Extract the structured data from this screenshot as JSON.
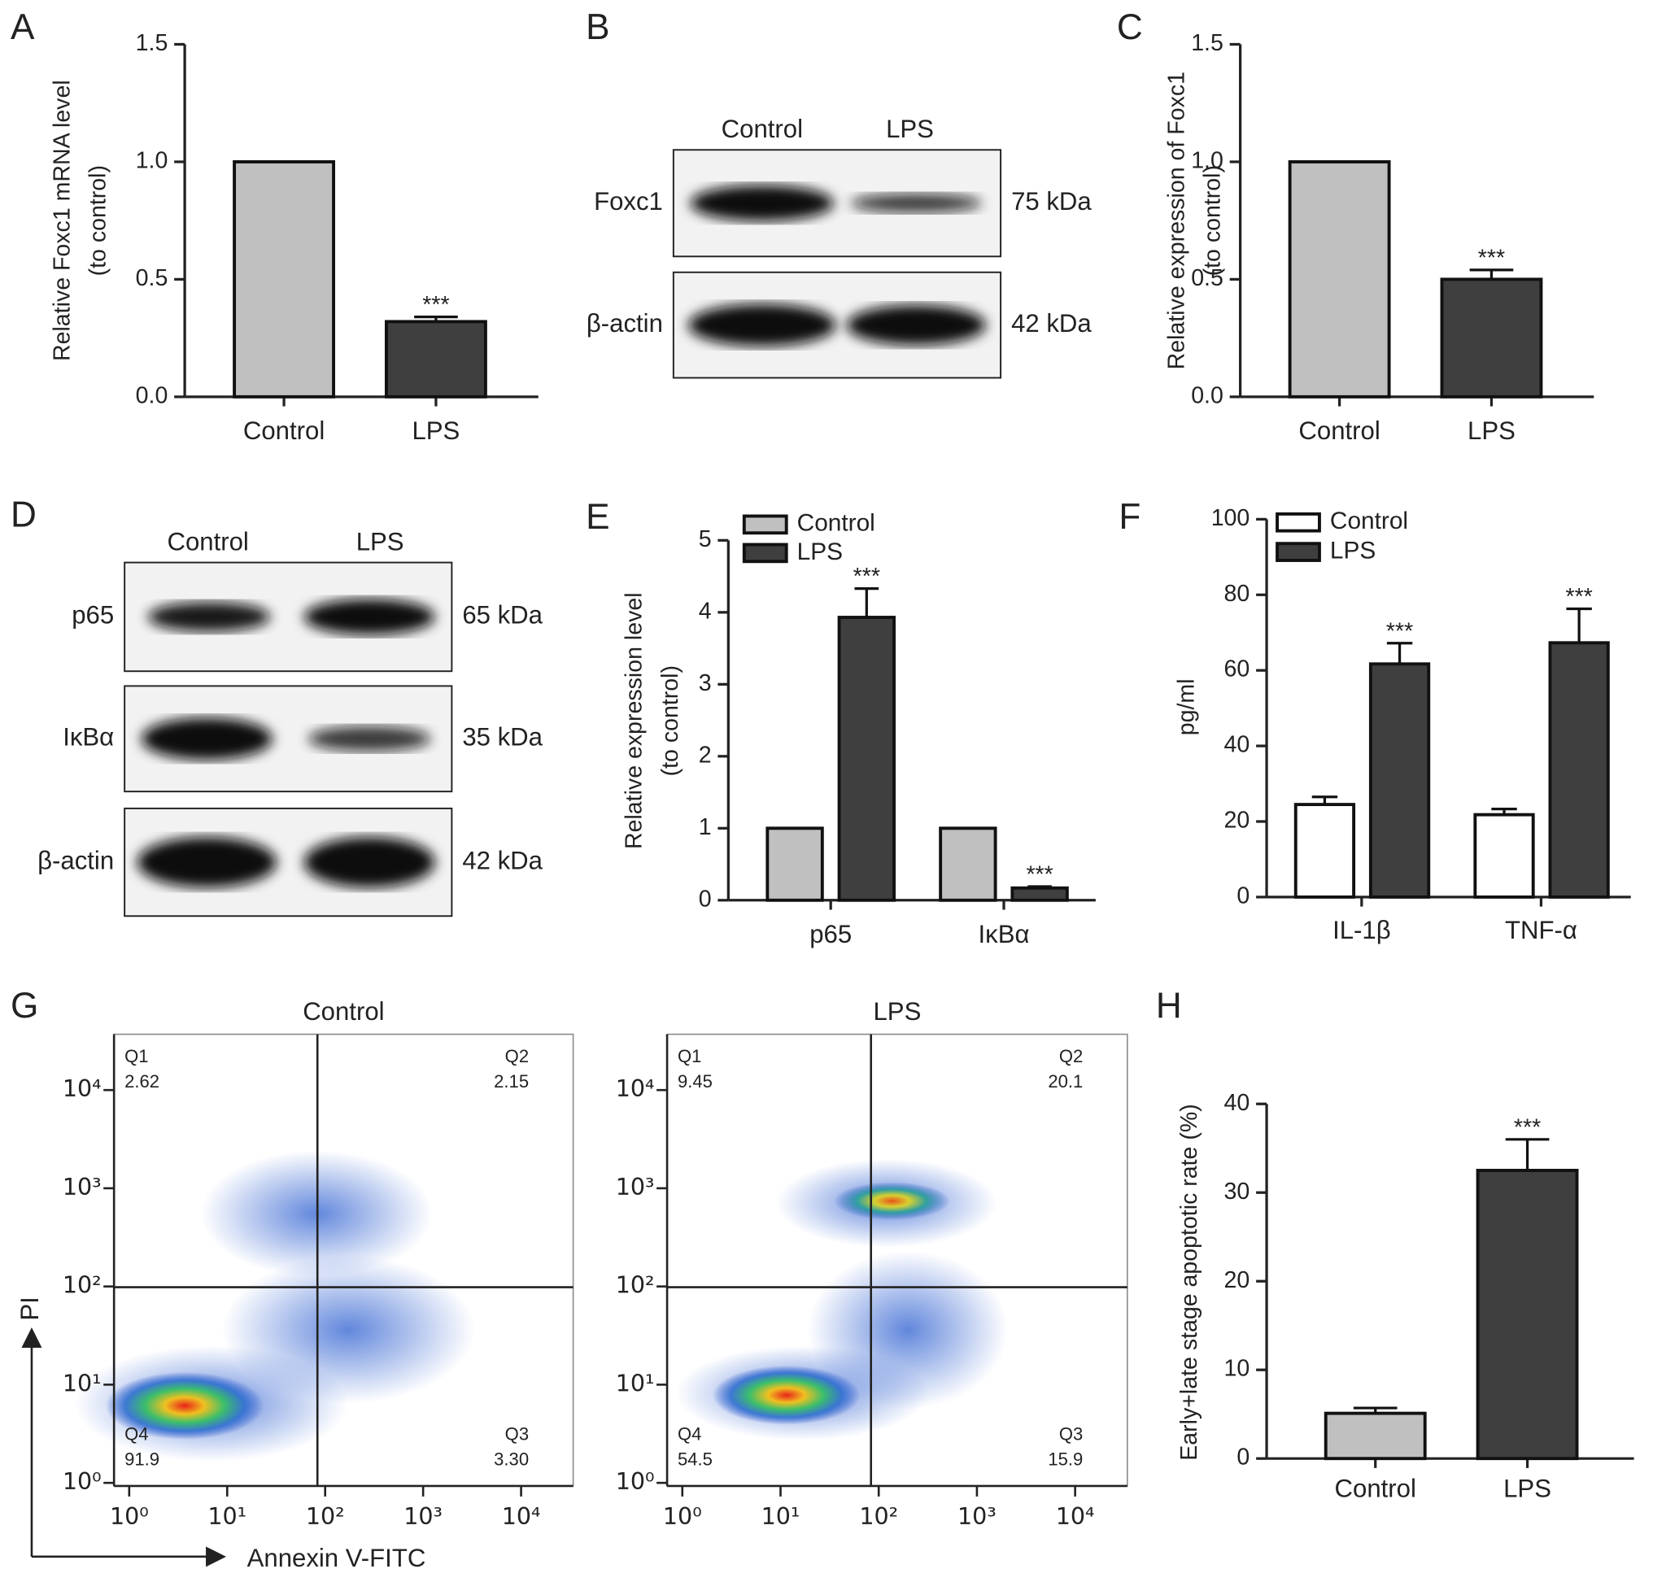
{
  "chart_data": [
    {
      "type": "bar",
      "panel": "A",
      "ylabel": [
        "Relative Foxc1 mRNA level",
        "(to control)"
      ],
      "categories": [
        "Control",
        "LPS"
      ],
      "values": [
        1.0,
        0.32
      ],
      "errors": [
        0,
        0.02
      ],
      "significance": [
        null,
        "***"
      ],
      "colors": [
        "#c0c0c0",
        "#3f3f3f"
      ],
      "ylim": [
        0,
        1.5
      ],
      "yticks": [
        {
          "value": 0,
          "label": "0.0"
        },
        {
          "value": 0.5,
          "label": "0.5"
        },
        {
          "value": 1,
          "label": "1.0"
        },
        {
          "value": 1.5,
          "label": "1.5"
        }
      ]
    },
    {
      "type": "western_blot",
      "panel": "B",
      "lanes": [
        "Control",
        "LPS"
      ],
      "rows": [
        {
          "name": "Foxc1",
          "size": "75 kDa"
        },
        {
          "name": "β-actin",
          "size": "42 kDa"
        }
      ]
    },
    {
      "type": "bar",
      "panel": "C",
      "ylabel": [
        "Relative expression of Foxc1",
        "(to control)"
      ],
      "categories": [
        "Control",
        "LPS"
      ],
      "values": [
        1.0,
        0.5
      ],
      "errors": [
        0,
        0.04
      ],
      "significance": [
        null,
        "***"
      ],
      "colors": [
        "#c0c0c0",
        "#3f3f3f"
      ],
      "ylim": [
        0,
        1.5
      ],
      "yticks": [
        {
          "value": 0,
          "label": "0.0"
        },
        {
          "value": 0.5,
          "label": "0.5"
        },
        {
          "value": 1,
          "label": "1.0"
        },
        {
          "value": 1.5,
          "label": "1.5"
        }
      ]
    },
    {
      "type": "western_blot",
      "panel": "D",
      "lanes": [
        "Control",
        "LPS"
      ],
      "rows": [
        {
          "name": "p65",
          "size": "65 kDa"
        },
        {
          "name": "IκBα",
          "size": "35 kDa"
        },
        {
          "name": "β-actin",
          "size": "42 kDa"
        }
      ]
    },
    {
      "type": "bar",
      "panel": "E",
      "ylabel": [
        "Relative expression level",
        "(to control)"
      ],
      "categories": [
        "p65",
        "IκBα"
      ],
      "series": [
        {
          "name": "Control",
          "color": "#c0c0c0",
          "values": [
            1,
            1
          ],
          "errors": [
            0,
            0
          ],
          "significance": [
            null,
            null
          ]
        },
        {
          "name": "LPS",
          "color": "#3f3f3f",
          "values": [
            3.93,
            0.17
          ],
          "errors": [
            0.4,
            0.02
          ],
          "significance": [
            "***",
            "***"
          ]
        }
      ],
      "ylim": [
        0,
        5
      ],
      "yticks": [
        0,
        1,
        2,
        3,
        4,
        5
      ],
      "legend": "top-left"
    },
    {
      "type": "bar",
      "panel": "F",
      "ylabel": [
        "pg/ml"
      ],
      "categories": [
        "IL-1β",
        "TNF-α"
      ],
      "series": [
        {
          "name": "Control",
          "color": "#ffffff",
          "values": [
            24.5,
            21.8
          ],
          "errors": [
            2,
            1.5
          ],
          "significance": [
            null,
            null
          ]
        },
        {
          "name": "LPS",
          "color": "#3f3f3f",
          "values": [
            61.7,
            67.3
          ],
          "errors": [
            5.5,
            9
          ],
          "significance": [
            "***",
            "***"
          ]
        }
      ],
      "ylim": [
        0,
        100
      ],
      "yticks": [
        0,
        20,
        40,
        60,
        80,
        100
      ],
      "legend": "top-left"
    },
    {
      "type": "flow_cytometry",
      "panel": "G",
      "xlabel": "Annexin V-FITC",
      "ylabel": "PI",
      "log_scale": true,
      "xlim": [
        0.7,
        34000
      ],
      "ylim": [
        0.93,
        37000
      ],
      "xticks": [
        {
          "value": 1,
          "label": "10⁰"
        },
        {
          "value": 10,
          "label": "10¹"
        },
        {
          "value": 100,
          "label": "10²"
        },
        {
          "value": 1000,
          "label": "10³"
        },
        {
          "value": 10000,
          "label": "10⁴"
        }
      ],
      "yticks": [
        {
          "value": 1,
          "label": "10⁰"
        },
        {
          "value": 10,
          "label": "10¹"
        },
        {
          "value": 100,
          "label": "10²"
        },
        {
          "value": 1000,
          "label": "10³"
        },
        {
          "value": 10000,
          "label": "10⁴"
        }
      ],
      "quadrant_names": [
        "Q1",
        "Q2",
        "Q3",
        "Q4"
      ],
      "samples": [
        {
          "title": "Control",
          "values": [
            2.62,
            2.15,
            3.3,
            91.9
          ],
          "value_labels": [
            "2.62",
            "2.15",
            "3.30",
            "91.9"
          ]
        },
        {
          "title": "LPS",
          "values": [
            9.45,
            20.1,
            15.9,
            54.5
          ],
          "value_labels": [
            "9.45",
            "20.1",
            "15.9",
            "54.5"
          ]
        }
      ]
    },
    {
      "type": "bar",
      "panel": "H",
      "ylabel": [
        "Early+late stage apoptotic rate (%)"
      ],
      "categories": [
        "Control",
        "LPS"
      ],
      "values": [
        5.1,
        32.5
      ],
      "errors": [
        0.6,
        3.5
      ],
      "significance": [
        null,
        "***"
      ],
      "colors": [
        "#c0c0c0",
        "#3f3f3f"
      ],
      "ylim": [
        0,
        40
      ],
      "yticks": [
        0,
        10,
        20,
        30,
        40
      ]
    }
  ]
}
